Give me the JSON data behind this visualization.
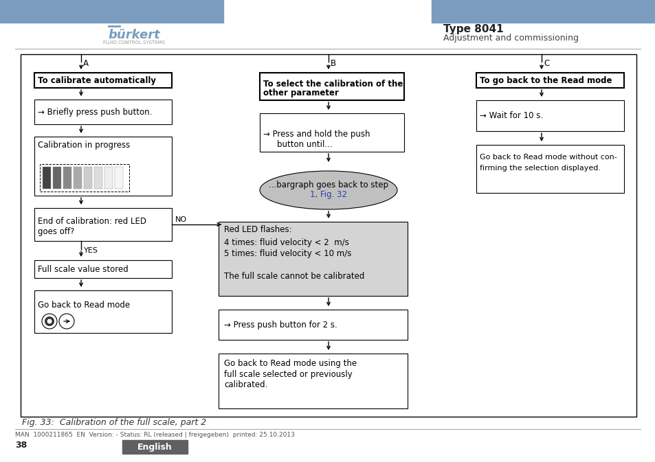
{
  "bg_color": "#ffffff",
  "header_bar_color": "#7a9cbf",
  "title_bold": "Type 8041",
  "title_normal": "Adjustment and commissioning",
  "footer_text": "MAN  1000211865  EN  Version: - Status: RL (released | freigegeben)  printed: 25.10.2013",
  "footer_page": "38",
  "footer_lang": "English",
  "footer_lang_bg": "#606060",
  "caption": "Fig. 33:  Calibration of the full scale, part 2",
  "ellipse_fill": "#c0c0c0",
  "gray_box_fill": "#d4d4d4",
  "link_color": "#2244aa"
}
